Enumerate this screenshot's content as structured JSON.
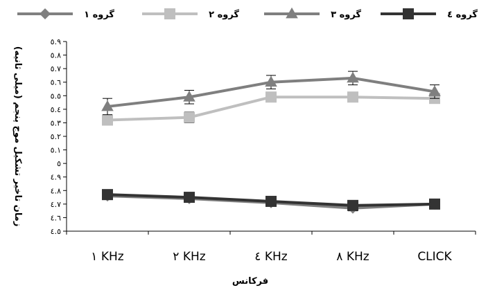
{
  "chart_data": {
    "type": "line",
    "title": "",
    "xlabel": "فرکانس",
    "ylabel": "(زمان تاخیر تشکیل موج پنجم (میلی ثانیه",
    "categories": [
      "١ KHz",
      "٢ KHz",
      "٤ KHz",
      "٨ KHz",
      "CLICK"
    ],
    "ylim": [
      4.5,
      5.9
    ],
    "y_ticks": [
      "٤.٥",
      "٤.٦",
      "٤.٧",
      "٤.٨",
      "٤.٩",
      "٥",
      "٥.١",
      "٥.٢",
      "٥.٣",
      "٥.٤",
      "٥.٥",
      "٥.٦",
      "٥.٧",
      "٥.٨",
      "٥.٩"
    ],
    "grid": false,
    "legend_position": "top",
    "series": [
      {
        "name": "گروه ١",
        "color": "#808080",
        "marker": "diamond",
        "values": [
          4.76,
          4.74,
          4.71,
          4.67,
          4.7
        ],
        "error": [
          0.02,
          0.02,
          0.02,
          0.02,
          0.02
        ]
      },
      {
        "name": "گروه ٢",
        "color": "#bfbfbf",
        "marker": "square",
        "values": [
          5.32,
          5.34,
          5.49,
          5.49,
          5.48
        ],
        "error": [
          0.03,
          0.04,
          0.03,
          0.03,
          0.03
        ]
      },
      {
        "name": "گروه ٣",
        "color": "#7f7f7f",
        "marker": "triangle",
        "values": [
          5.42,
          5.49,
          5.6,
          5.63,
          5.53
        ],
        "error": [
          0.06,
          0.05,
          0.05,
          0.05,
          0.05
        ]
      },
      {
        "name": "گروه ٤",
        "color": "#333333",
        "marker": "square",
        "values": [
          4.77,
          4.75,
          4.72,
          4.69,
          4.7
        ],
        "error": [
          0.02,
          0.02,
          0.03,
          0.03,
          0.03
        ]
      }
    ]
  }
}
